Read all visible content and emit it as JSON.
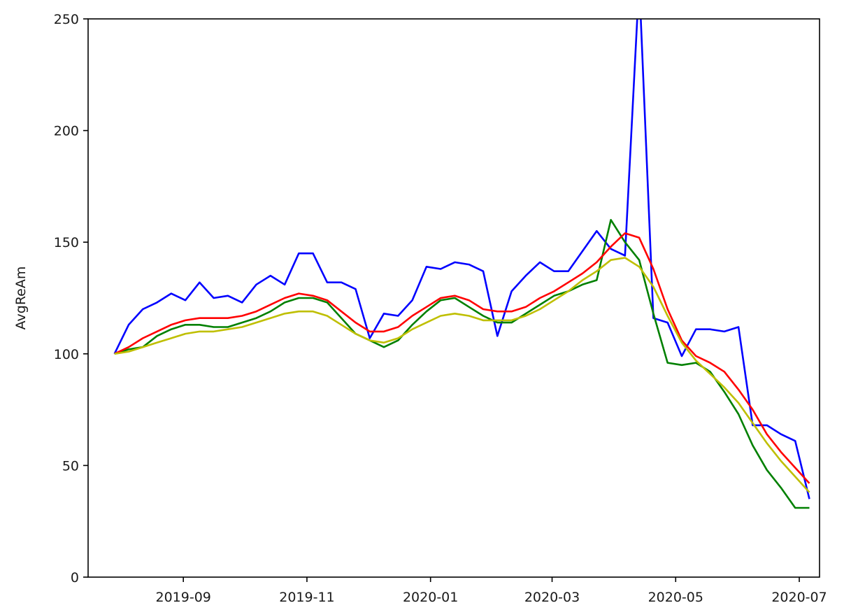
{
  "chart_data": {
    "type": "line",
    "title": "",
    "xlabel": "",
    "ylabel": "AvgReAm",
    "ylim": [
      0,
      250
    ],
    "xlim": [
      "2019-07-16",
      "2020-07-11"
    ],
    "grid": false,
    "yticks": [
      0,
      50,
      100,
      150,
      200,
      250
    ],
    "xticks": [
      "2019-09",
      "2019-11",
      "2020-01",
      "2020-03",
      "2020-05",
      "2020-07"
    ],
    "x": [
      "2019-07-29",
      "2019-08-05",
      "2019-08-12",
      "2019-08-19",
      "2019-08-26",
      "2019-09-02",
      "2019-09-09",
      "2019-09-16",
      "2019-09-23",
      "2019-09-30",
      "2019-10-07",
      "2019-10-14",
      "2019-10-21",
      "2019-10-28",
      "2019-11-04",
      "2019-11-11",
      "2019-11-18",
      "2019-11-25",
      "2019-12-02",
      "2019-12-09",
      "2019-12-16",
      "2019-12-23",
      "2019-12-30",
      "2020-01-06",
      "2020-01-13",
      "2020-01-20",
      "2020-01-27",
      "2020-02-03",
      "2020-02-10",
      "2020-02-17",
      "2020-02-24",
      "2020-03-02",
      "2020-03-09",
      "2020-03-16",
      "2020-03-23",
      "2020-03-30",
      "2020-04-06",
      "2020-04-13",
      "2020-04-20",
      "2020-04-27",
      "2020-05-04",
      "2020-05-11",
      "2020-05-18",
      "2020-05-25",
      "2020-06-01",
      "2020-06-08",
      "2020-06-15",
      "2020-06-22",
      "2020-06-29",
      "2020-07-06"
    ],
    "series": [
      {
        "color": "#0000ff",
        "values": [
          100,
          113,
          120,
          123,
          127,
          124,
          132,
          125,
          126,
          123,
          131,
          135,
          131,
          145,
          145,
          132,
          132,
          129,
          107,
          118,
          117,
          124,
          139,
          138,
          141,
          140,
          137,
          108,
          128,
          135,
          141,
          137,
          137,
          146,
          155,
          147,
          144,
          267,
          116,
          114,
          99,
          111,
          111,
          110,
          112,
          68,
          68,
          64,
          61,
          35
        ]
      },
      {
        "color": "#008000",
        "values": [
          100,
          102,
          103,
          108,
          111,
          113,
          113,
          112,
          112,
          114,
          116,
          119,
          123,
          125,
          125,
          123,
          116,
          109,
          106,
          103,
          106,
          113,
          119,
          124,
          125,
          121,
          117,
          114,
          114,
          118,
          122,
          126,
          128,
          131,
          133,
          160,
          150,
          142,
          118,
          96,
          95,
          96,
          92,
          83,
          73,
          59,
          48,
          40,
          31,
          31
        ]
      },
      {
        "color": "#ff0000",
        "values": [
          100,
          103,
          107,
          110,
          113,
          115,
          116,
          116,
          116,
          117,
          119,
          122,
          125,
          127,
          126,
          124,
          119,
          114,
          110,
          110,
          112,
          117,
          121,
          125,
          126,
          124,
          120,
          119,
          119,
          121,
          125,
          128,
          132,
          136,
          141,
          148,
          154,
          152,
          138,
          120,
          106,
          99,
          96,
          92,
          84,
          75,
          64,
          56,
          49,
          42
        ]
      },
      {
        "color": "#bfbf00",
        "values": [
          100,
          101,
          103,
          105,
          107,
          109,
          110,
          110,
          111,
          112,
          114,
          116,
          118,
          119,
          119,
          117,
          113,
          109,
          106,
          105,
          107,
          111,
          114,
          117,
          118,
          117,
          115,
          115,
          115,
          117,
          120,
          124,
          128,
          133,
          137,
          142,
          143,
          139,
          130,
          117,
          105,
          97,
          91,
          85,
          78,
          69,
          60,
          52,
          45,
          38
        ]
      }
    ]
  }
}
